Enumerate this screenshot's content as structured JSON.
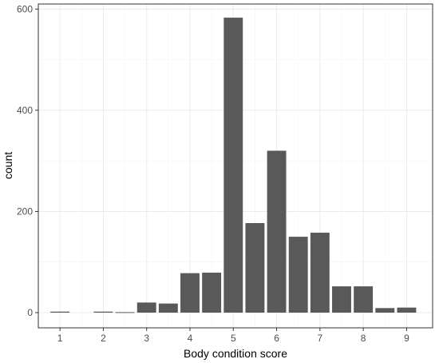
{
  "chart_data": {
    "type": "bar",
    "xlabel": "Body condition score",
    "ylabel": "count",
    "x_ticks": [
      "1",
      "2",
      "3",
      "4",
      "5",
      "6",
      "7",
      "8",
      "9"
    ],
    "y_ticks": [
      "0",
      "200",
      "400",
      "600"
    ],
    "xlim": [
      0.5,
      9.6
    ],
    "ylim": [
      -30,
      610
    ],
    "grid": true,
    "colors": {
      "bar": "#595959",
      "grid_major": "#ebebeb",
      "grid_minor": "#f5f5f5",
      "panel_border": "#333333"
    },
    "bars": [
      {
        "x": 1.0,
        "value": 2
      },
      {
        "x": 2.0,
        "value": 2
      },
      {
        "x": 2.5,
        "value": 1
      },
      {
        "x": 3.0,
        "value": 20
      },
      {
        "x": 3.5,
        "value": 18
      },
      {
        "x": 4.0,
        "value": 78
      },
      {
        "x": 4.5,
        "value": 79
      },
      {
        "x": 5.0,
        "value": 583
      },
      {
        "x": 5.5,
        "value": 177
      },
      {
        "x": 6.0,
        "value": 320
      },
      {
        "x": 6.5,
        "value": 150
      },
      {
        "x": 7.0,
        "value": 158
      },
      {
        "x": 7.5,
        "value": 52
      },
      {
        "x": 8.0,
        "value": 52
      },
      {
        "x": 8.5,
        "value": 9
      },
      {
        "x": 9.0,
        "value": 10
      }
    ]
  }
}
